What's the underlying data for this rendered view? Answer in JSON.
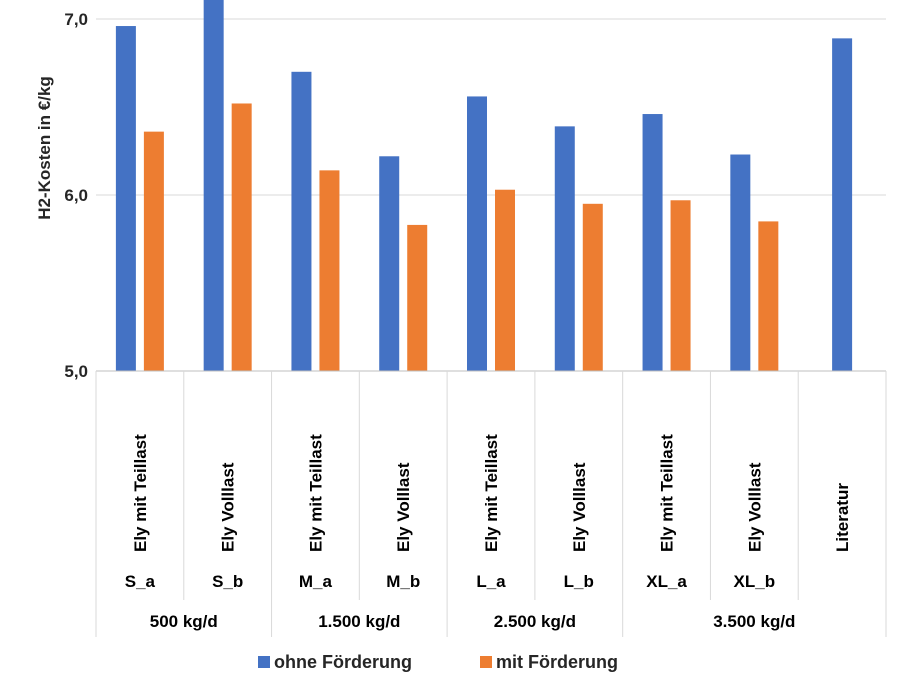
{
  "chart_data": {
    "type": "bar",
    "ylabel": "H2-Kosten in €/kg",
    "ylim": [
      5.0,
      7.0
    ],
    "y_ticks": [
      "5,0",
      "6,0",
      "7,0"
    ],
    "grid": true,
    "legend_position": "bottom",
    "categories": [
      {
        "label": "Ely mit Teillast",
        "scenario": "S_a"
      },
      {
        "label": "Ely Volllast",
        "scenario": "S_b"
      },
      {
        "label": "Ely mit Teillast",
        "scenario": "M_a"
      },
      {
        "label": "Ely Volllast",
        "scenario": "M_b"
      },
      {
        "label": "Ely mit Teillast",
        "scenario": "L_a"
      },
      {
        "label": "Ely Volllast",
        "scenario": "L_b"
      },
      {
        "label": "Ely mit Teillast",
        "scenario": "XL_a"
      },
      {
        "label": "Ely Volllast",
        "scenario": "XL_b"
      },
      {
        "label": "Literatur",
        "scenario": ""
      }
    ],
    "groups": [
      {
        "label": "500 kg/d",
        "span": 2
      },
      {
        "label": "1.500 kg/d",
        "span": 2
      },
      {
        "label": "2.500 kg/d",
        "span": 2
      },
      {
        "label": "3.500 kg/d",
        "span": 3
      }
    ],
    "series": [
      {
        "name": "ohne Förderung",
        "color": "#4472c4",
        "values": [
          6.96,
          7.15,
          6.7,
          6.22,
          6.56,
          6.39,
          6.46,
          6.23,
          6.89
        ]
      },
      {
        "name": "mit Förderung",
        "color": "#ed7d31",
        "values": [
          6.36,
          6.52,
          6.14,
          5.83,
          6.03,
          5.95,
          5.97,
          5.85,
          null
        ]
      }
    ]
  }
}
